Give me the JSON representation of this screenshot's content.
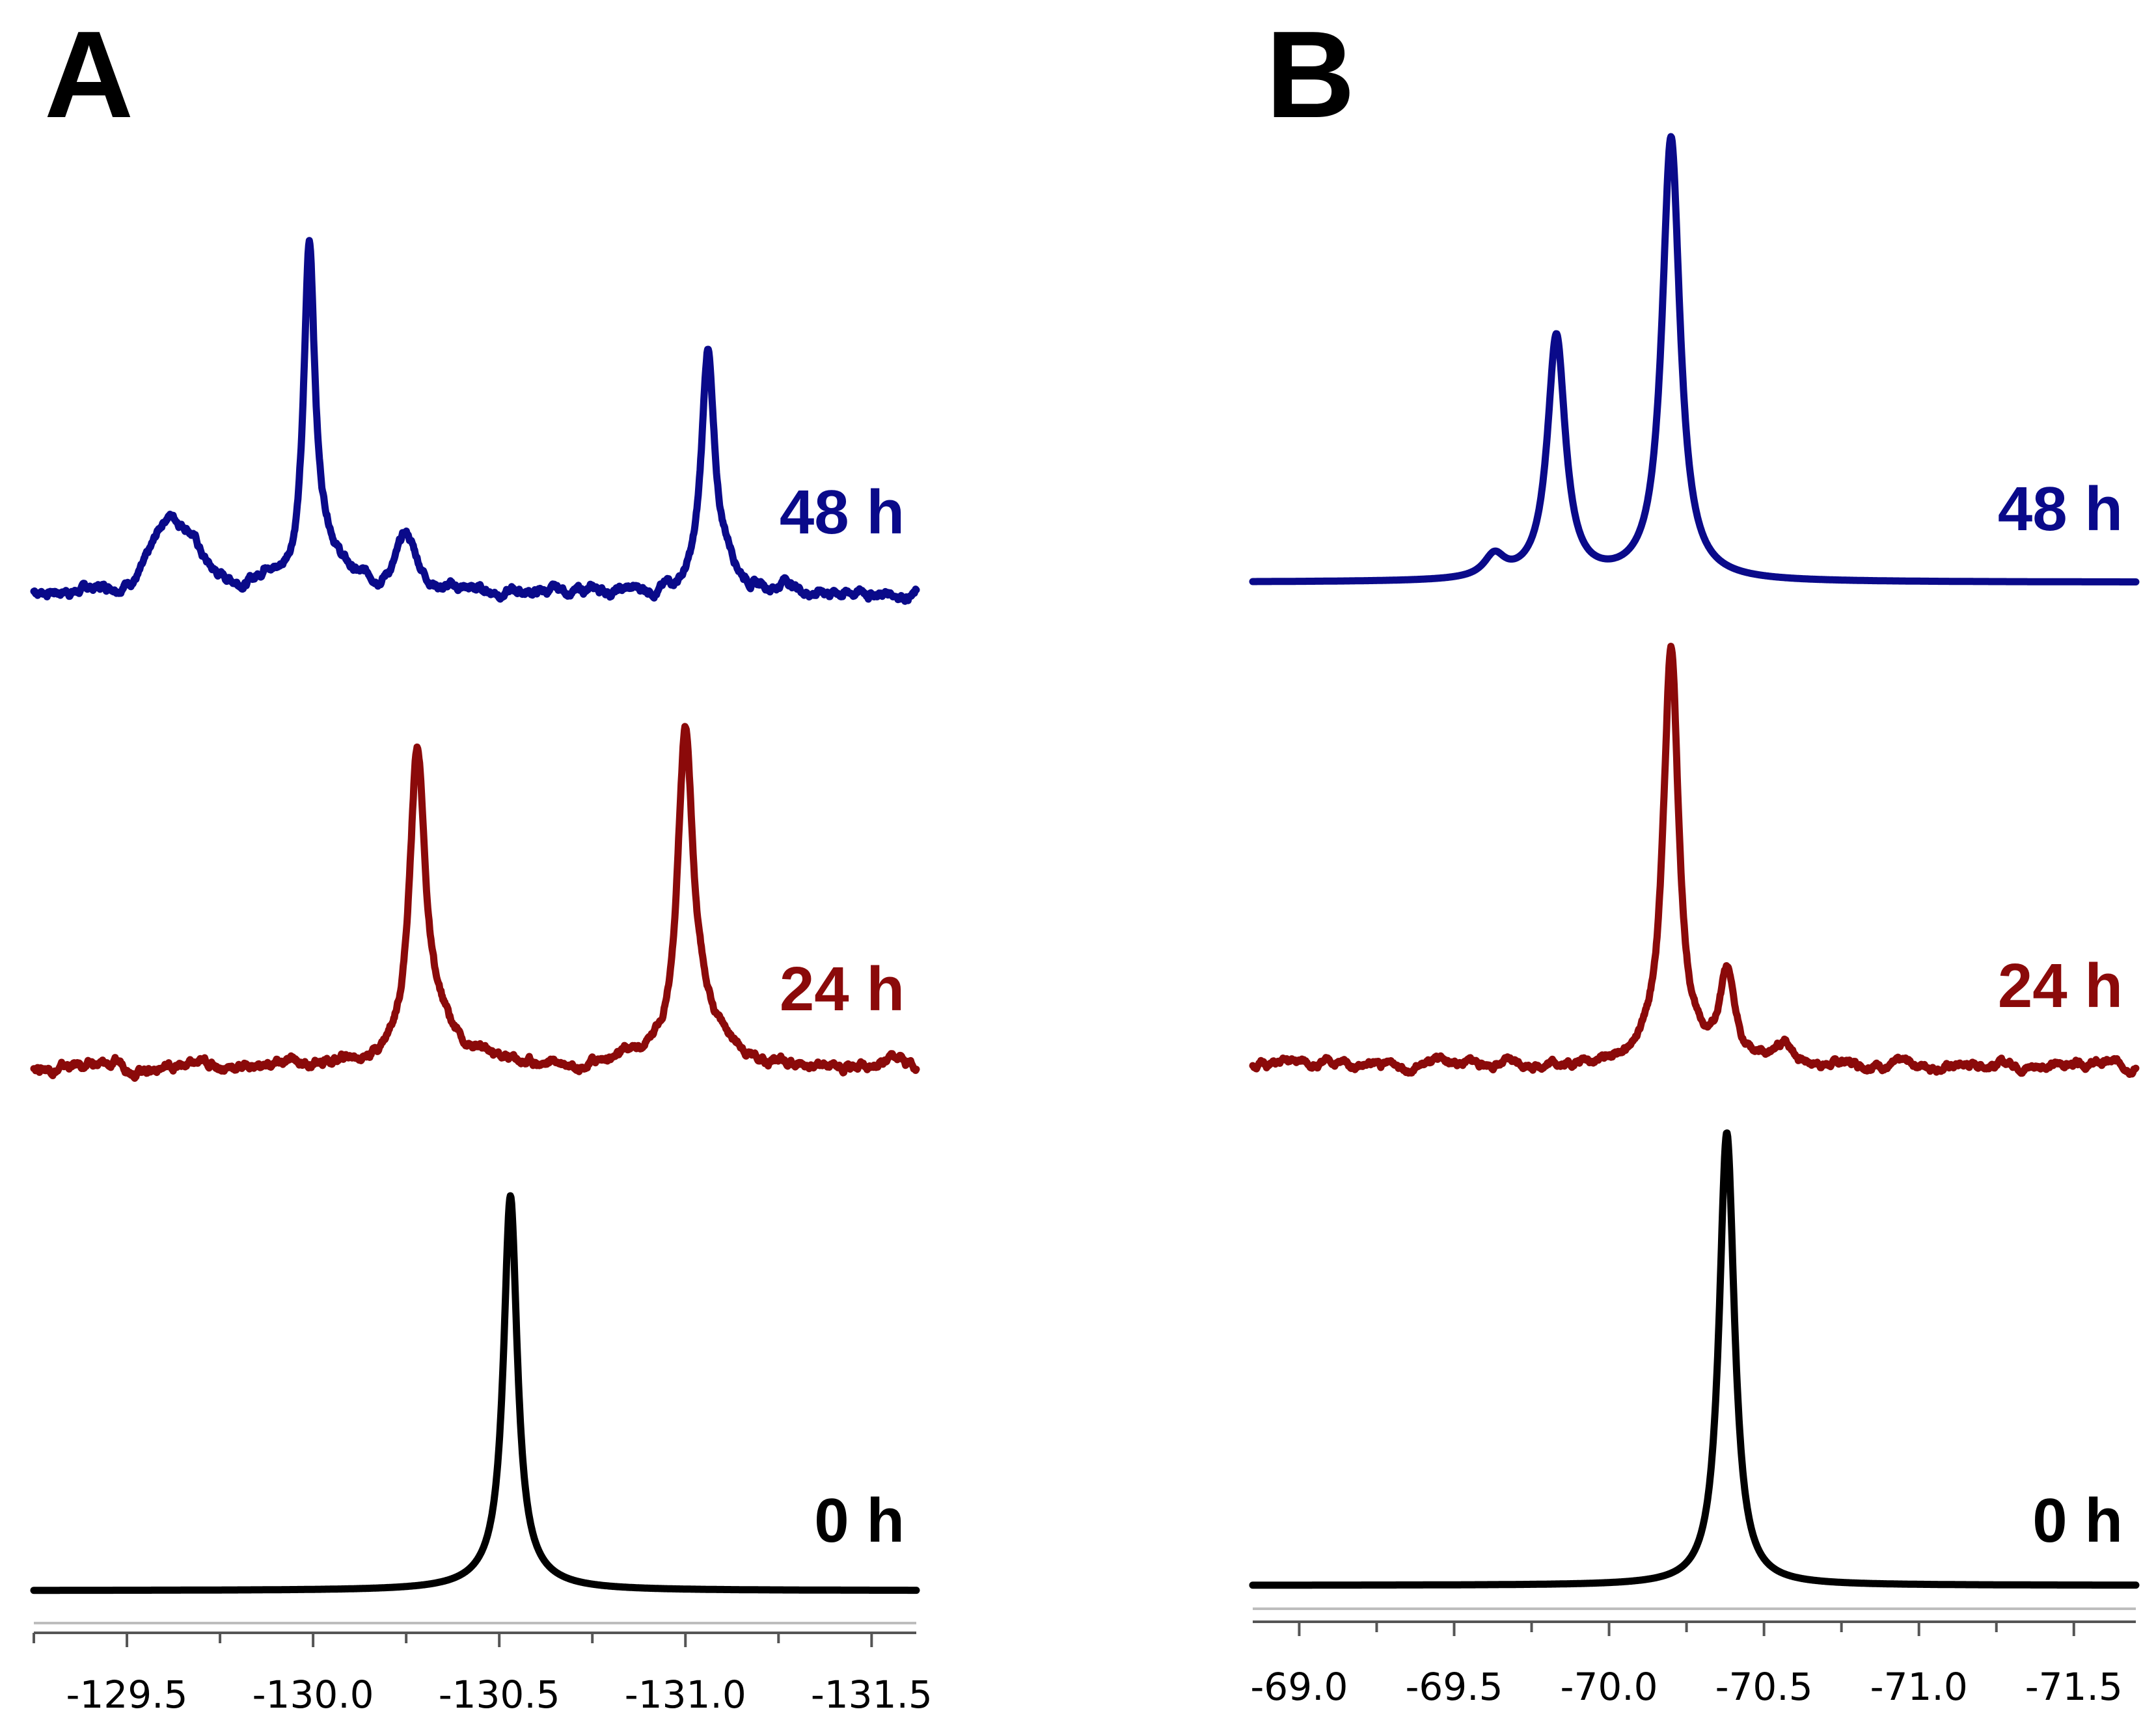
{
  "chart_data": [
    {
      "panel": "A",
      "type": "line",
      "xlim": [
        -129.25,
        -131.62
      ],
      "xticks": [
        -129.5,
        -130.0,
        -130.5,
        -131.0,
        -131.5
      ],
      "xtick_labels": [
        "-129.5",
        "-130.0",
        "-130.5",
        "-131.0",
        "-131.5"
      ],
      "series": [
        {
          "name": "48 h",
          "label": "48 h",
          "color": "#0a0a8a",
          "noise": 0.012,
          "peaks": [
            {
              "ppm": -129.61,
              "height": 0.17,
              "width": 0.05
            },
            {
              "ppm": -129.67,
              "height": 0.1,
              "width": 0.04
            },
            {
              "ppm": -129.88,
              "height": 0.05,
              "width": 0.02
            },
            {
              "ppm": -129.99,
              "height": 0.87,
              "width": 0.018
            },
            {
              "ppm": -130.04,
              "height": 0.1,
              "width": 0.05
            },
            {
              "ppm": -130.25,
              "height": 0.14,
              "width": 0.035
            },
            {
              "ppm": -131.06,
              "height": 0.62,
              "width": 0.02
            },
            {
              "ppm": -131.11,
              "height": 0.07,
              "width": 0.04
            },
            {
              "ppm": -131.27,
              "height": 0.03,
              "width": 0.02
            }
          ]
        },
        {
          "name": "24 h",
          "label": "24 h",
          "color": "#8b0a0a",
          "noise": 0.012,
          "peaks": [
            {
              "ppm": -130.28,
              "height": 0.8,
              "width": 0.025
            },
            {
              "ppm": -130.33,
              "height": 0.08,
              "width": 0.08
            },
            {
              "ppm": -131.0,
              "height": 0.83,
              "width": 0.025
            },
            {
              "ppm": -131.05,
              "height": 0.09,
              "width": 0.08
            }
          ]
        },
        {
          "name": "0 h",
          "label": "0 h",
          "color": "#000000",
          "noise": 0.0,
          "peaks": [
            {
              "ppm": -130.53,
              "height": 1.0,
              "width": 0.022
            },
            {
              "ppm": -130.53,
              "height": 0.05,
              "width": 0.09
            }
          ]
        }
      ]
    },
    {
      "panel": "B",
      "type": "line",
      "xlim": [
        -68.85,
        -71.7
      ],
      "xticks": [
        -69.0,
        -69.5,
        -70.0,
        -70.5,
        -71.0,
        -71.5
      ],
      "xtick_labels": [
        "-69.0",
        "-69.5",
        "-70.0",
        "-70.5",
        "-71.0",
        "-71.5"
      ],
      "series": [
        {
          "name": "48 h",
          "label": "48 h",
          "color": "#0a0a8a",
          "noise": 0.0,
          "peaks": [
            {
              "ppm": -69.63,
              "height": 0.06,
              "width": 0.04
            },
            {
              "ppm": -69.83,
              "height": 0.66,
              "width": 0.035
            },
            {
              "ppm": -70.2,
              "height": 1.2,
              "width": 0.035
            }
          ]
        },
        {
          "name": "24 h",
          "label": "24 h",
          "color": "#8b0a0a",
          "noise": 0.01,
          "peaks": [
            {
              "ppm": -70.2,
              "height": 1.1,
              "width": 0.03
            },
            {
              "ppm": -70.38,
              "height": 0.22,
              "width": 0.028
            },
            {
              "ppm": -70.57,
              "height": 0.04,
              "width": 0.03
            }
          ]
        },
        {
          "name": "0 h",
          "label": "0 h",
          "color": "#000000",
          "noise": 0.0,
          "peaks": [
            {
              "ppm": -70.38,
              "height": 1.2,
              "width": 0.03
            }
          ]
        }
      ]
    }
  ]
}
